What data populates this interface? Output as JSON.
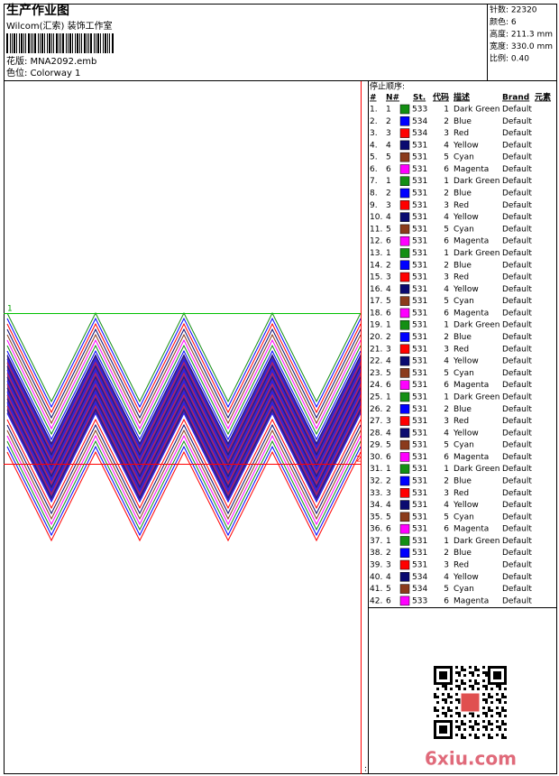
{
  "header": {
    "title": "生产作业图",
    "company": "Wilcom(汇索) 装饰工作室",
    "design": "花版:  MNA2092.emb",
    "colorway": "色位:  Colorway 1"
  },
  "info": [
    "针数:  22320",
    "颜色:  6",
    "高度:  211.3 mm",
    "宽度:  330.0 mm",
    "比例:  0.40"
  ],
  "table": {
    "title": "停止顺序:",
    "columns": [
      "#",
      "N#",
      "St.",
      "代码",
      "描述",
      "Brand",
      "元素"
    ],
    "rows": [
      {
        "index": "1.",
        "n": "1",
        "color": "#138f13",
        "st": "533",
        "code": "1",
        "desc": "Dark Green",
        "brand": "Default"
      },
      {
        "index": "2.",
        "n": "2",
        "color": "#0000ff",
        "st": "534",
        "code": "2",
        "desc": "Blue",
        "brand": "Default"
      },
      {
        "index": "3.",
        "n": "3",
        "color": "#ff0000",
        "st": "534",
        "code": "3",
        "desc": "Red",
        "brand": "Default"
      },
      {
        "index": "4.",
        "n": "4",
        "color": "#0a0a70",
        "st": "531",
        "code": "4",
        "desc": "Yellow",
        "brand": "Default"
      },
      {
        "index": "5.",
        "n": "5",
        "color": "#8b3b1b",
        "st": "531",
        "code": "5",
        "desc": "Cyan",
        "brand": "Default"
      },
      {
        "index": "6.",
        "n": "6",
        "color": "#ff00ff",
        "st": "531",
        "code": "6",
        "desc": "Magenta",
        "brand": "Default"
      },
      {
        "index": "7.",
        "n": "1",
        "color": "#138f13",
        "st": "531",
        "code": "1",
        "desc": "Dark Green",
        "brand": "Default"
      },
      {
        "index": "8.",
        "n": "2",
        "color": "#0000ff",
        "st": "531",
        "code": "2",
        "desc": "Blue",
        "brand": "Default"
      },
      {
        "index": "9.",
        "n": "3",
        "color": "#ff0000",
        "st": "531",
        "code": "3",
        "desc": "Red",
        "brand": "Default"
      },
      {
        "index": "10.",
        "n": "4",
        "color": "#0a0a70",
        "st": "531",
        "code": "4",
        "desc": "Yellow",
        "brand": "Default"
      },
      {
        "index": "11.",
        "n": "5",
        "color": "#8b3b1b",
        "st": "531",
        "code": "5",
        "desc": "Cyan",
        "brand": "Default"
      },
      {
        "index": "12.",
        "n": "6",
        "color": "#ff00ff",
        "st": "531",
        "code": "6",
        "desc": "Magenta",
        "brand": "Default"
      },
      {
        "index": "13.",
        "n": "1",
        "color": "#138f13",
        "st": "531",
        "code": "1",
        "desc": "Dark Green",
        "brand": "Default"
      },
      {
        "index": "14.",
        "n": "2",
        "color": "#0000ff",
        "st": "531",
        "code": "2",
        "desc": "Blue",
        "brand": "Default"
      },
      {
        "index": "15.",
        "n": "3",
        "color": "#ff0000",
        "st": "531",
        "code": "3",
        "desc": "Red",
        "brand": "Default"
      },
      {
        "index": "16.",
        "n": "4",
        "color": "#0a0a70",
        "st": "531",
        "code": "4",
        "desc": "Yellow",
        "brand": "Default"
      },
      {
        "index": "17.",
        "n": "5",
        "color": "#8b3b1b",
        "st": "531",
        "code": "5",
        "desc": "Cyan",
        "brand": "Default"
      },
      {
        "index": "18.",
        "n": "6",
        "color": "#ff00ff",
        "st": "531",
        "code": "6",
        "desc": "Magenta",
        "brand": "Default"
      },
      {
        "index": "19.",
        "n": "1",
        "color": "#138f13",
        "st": "531",
        "code": "1",
        "desc": "Dark Green",
        "brand": "Default"
      },
      {
        "index": "20.",
        "n": "2",
        "color": "#0000ff",
        "st": "531",
        "code": "2",
        "desc": "Blue",
        "brand": "Default"
      },
      {
        "index": "21.",
        "n": "3",
        "color": "#ff0000",
        "st": "531",
        "code": "3",
        "desc": "Red",
        "brand": "Default"
      },
      {
        "index": "22.",
        "n": "4",
        "color": "#0a0a70",
        "st": "531",
        "code": "4",
        "desc": "Yellow",
        "brand": "Default"
      },
      {
        "index": "23.",
        "n": "5",
        "color": "#8b3b1b",
        "st": "531",
        "code": "5",
        "desc": "Cyan",
        "brand": "Default"
      },
      {
        "index": "24.",
        "n": "6",
        "color": "#ff00ff",
        "st": "531",
        "code": "6",
        "desc": "Magenta",
        "brand": "Default"
      },
      {
        "index": "25.",
        "n": "1",
        "color": "#138f13",
        "st": "531",
        "code": "1",
        "desc": "Dark Green",
        "brand": "Default"
      },
      {
        "index": "26.",
        "n": "2",
        "color": "#0000ff",
        "st": "531",
        "code": "2",
        "desc": "Blue",
        "brand": "Default"
      },
      {
        "index": "27.",
        "n": "3",
        "color": "#ff0000",
        "st": "531",
        "code": "3",
        "desc": "Red",
        "brand": "Default"
      },
      {
        "index": "28.",
        "n": "4",
        "color": "#0a0a70",
        "st": "531",
        "code": "4",
        "desc": "Yellow",
        "brand": "Default"
      },
      {
        "index": "29.",
        "n": "5",
        "color": "#8b3b1b",
        "st": "531",
        "code": "5",
        "desc": "Cyan",
        "brand": "Default"
      },
      {
        "index": "30.",
        "n": "6",
        "color": "#ff00ff",
        "st": "531",
        "code": "6",
        "desc": "Magenta",
        "brand": "Default"
      },
      {
        "index": "31.",
        "n": "1",
        "color": "#138f13",
        "st": "531",
        "code": "1",
        "desc": "Dark Green",
        "brand": "Default"
      },
      {
        "index": "32.",
        "n": "2",
        "color": "#0000ff",
        "st": "531",
        "code": "2",
        "desc": "Blue",
        "brand": "Default"
      },
      {
        "index": "33.",
        "n": "3",
        "color": "#ff0000",
        "st": "531",
        "code": "3",
        "desc": "Red",
        "brand": "Default"
      },
      {
        "index": "34.",
        "n": "4",
        "color": "#0a0a70",
        "st": "531",
        "code": "4",
        "desc": "Yellow",
        "brand": "Default"
      },
      {
        "index": "35.",
        "n": "5",
        "color": "#8b3b1b",
        "st": "531",
        "code": "5",
        "desc": "Cyan",
        "brand": "Default"
      },
      {
        "index": "36.",
        "n": "6",
        "color": "#ff00ff",
        "st": "531",
        "code": "6",
        "desc": "Magenta",
        "brand": "Default"
      },
      {
        "index": "37.",
        "n": "1",
        "color": "#138f13",
        "st": "531",
        "code": "1",
        "desc": "Dark Green",
        "brand": "Default"
      },
      {
        "index": "38.",
        "n": "2",
        "color": "#0000ff",
        "st": "531",
        "code": "2",
        "desc": "Blue",
        "brand": "Default"
      },
      {
        "index": "39.",
        "n": "3",
        "color": "#ff0000",
        "st": "531",
        "code": "3",
        "desc": "Red",
        "brand": "Default"
      },
      {
        "index": "40.",
        "n": "4",
        "color": "#0a0a70",
        "st": "534",
        "code": "4",
        "desc": "Yellow",
        "brand": "Default"
      },
      {
        "index": "41.",
        "n": "5",
        "color": "#8b3b1b",
        "st": "534",
        "code": "5",
        "desc": "Cyan",
        "brand": "Default"
      },
      {
        "index": "42.",
        "n": "6",
        "color": "#ff00ff",
        "st": "533",
        "code": "6",
        "desc": "Magenta",
        "brand": "Default"
      }
    ]
  },
  "design_markers": [
    "1",
    "2"
  ],
  "watermark": "6xiu.com"
}
